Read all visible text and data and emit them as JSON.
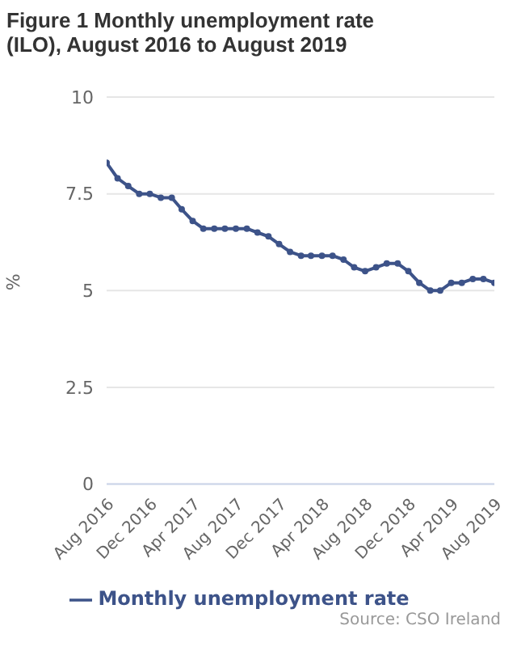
{
  "chart_data": {
    "type": "line",
    "title": "Figure 1 Monthly unemployment rate (ILO), August 2016 to August 2019",
    "ylabel": "%",
    "x": [
      "2016-08",
      "2016-09",
      "2016-10",
      "2016-11",
      "2016-12",
      "2017-01",
      "2017-02",
      "2017-03",
      "2017-04",
      "2017-05",
      "2017-06",
      "2017-07",
      "2017-08",
      "2017-09",
      "2017-10",
      "2017-11",
      "2017-12",
      "2018-01",
      "2018-02",
      "2018-03",
      "2018-04",
      "2018-05",
      "2018-06",
      "2018-07",
      "2018-08",
      "2018-09",
      "2018-10",
      "2018-11",
      "2018-12",
      "2019-01",
      "2019-02",
      "2019-03",
      "2019-04",
      "2019-05",
      "2019-06",
      "2019-07",
      "2019-08"
    ],
    "series": [
      {
        "name": "Monthly unemployment rate",
        "color": "#3d5389",
        "values": [
          8.3,
          7.9,
          7.7,
          7.5,
          7.5,
          7.4,
          7.4,
          7.1,
          6.8,
          6.6,
          6.6,
          6.6,
          6.6,
          6.6,
          6.5,
          6.4,
          6.2,
          6.0,
          5.9,
          5.9,
          5.9,
          5.9,
          5.8,
          5.6,
          5.5,
          5.6,
          5.7,
          5.7,
          5.5,
          5.2,
          5.0,
          5.0,
          5.2,
          5.2,
          5.3,
          5.3,
          5.2
        ]
      }
    ],
    "xlim": [
      "2016-08",
      "2019-08"
    ],
    "xticks": [
      {
        "value": "2016-08",
        "label": "Aug 2016"
      },
      {
        "value": "2016-12",
        "label": "Dec 2016"
      },
      {
        "value": "2017-04",
        "label": "Apr 2017"
      },
      {
        "value": "2017-08",
        "label": "Aug 2017"
      },
      {
        "value": "2017-12",
        "label": "Dec 2017"
      },
      {
        "value": "2018-04",
        "label": "Apr 2018"
      },
      {
        "value": "2018-08",
        "label": "Aug 2018"
      },
      {
        "value": "2018-12",
        "label": "Dec 2018"
      },
      {
        "value": "2019-04",
        "label": "Apr 2019"
      },
      {
        "value": "2019-08",
        "label": "Aug 2019"
      }
    ],
    "ylim": [
      0,
      10
    ],
    "yticks": [
      0,
      2.5,
      5,
      7.5,
      10
    ],
    "grid": "y",
    "legend": "bottom",
    "marker": "circle",
    "line_style": "solid",
    "annotations": [
      "Source: CSO Ireland"
    ]
  }
}
